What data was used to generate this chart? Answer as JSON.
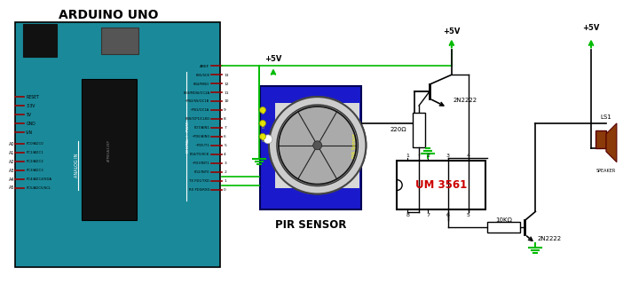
{
  "bg_color": "#ffffff",
  "arduino_color": "#1a8a9a",
  "arduino_dark": "#156e7a",
  "pir_board_color": "#1a1acc",
  "ic_color": "#f0f0f0",
  "wire_green": "#00bb00",
  "wire_red": "#cc0000",
  "wire_brown": "#8b3a0a",
  "arduino_title": "ARDUINO UNO",
  "pir_label": "PIR SENSOR",
  "ic_label": "UM 3561",
  "transistor1_label": "2N2222",
  "transistor2_label": "2N2222",
  "r1_label": "220Ω",
  "r2_label": "10KΩ",
  "vcc_label": "+5V",
  "ls1_label": "LS1",
  "speaker_label": "SPEAKER",
  "analog_labels": [
    "A0",
    "A1",
    "A2",
    "A3",
    "A4",
    "A5"
  ],
  "left_full": [
    "PC0/ADC0",
    "PC1/ADC1",
    "PC2/ADC2",
    "PC3/ADC3",
    "PC4/ADC4/SDA",
    "PC5/ADC5/SCL"
  ],
  "left_top": [
    "RESET",
    "3.3V",
    "5V",
    "GND",
    "VIN"
  ],
  "right_labels": [
    "PB5/SCK",
    "PB4/MISO",
    "PB3/MOSI/OC2A",
    "~PB2/SS/OC1B",
    "~PB1/OC1A",
    "PB0/ICP1/CLKO",
    "PD7/AIN1",
    "~PD6/AIN0",
    "~PD5/T1",
    "PD4/T0/XCK",
    "~PD3/INT1",
    "PD2/INT0",
    "TX PD1/TXD",
    "RX PD0/RXD"
  ],
  "right_nums": [
    "13",
    "12",
    "11",
    "10",
    "9",
    "8",
    "7",
    "6",
    "5",
    "4",
    "3",
    "2",
    "1",
    "0"
  ]
}
